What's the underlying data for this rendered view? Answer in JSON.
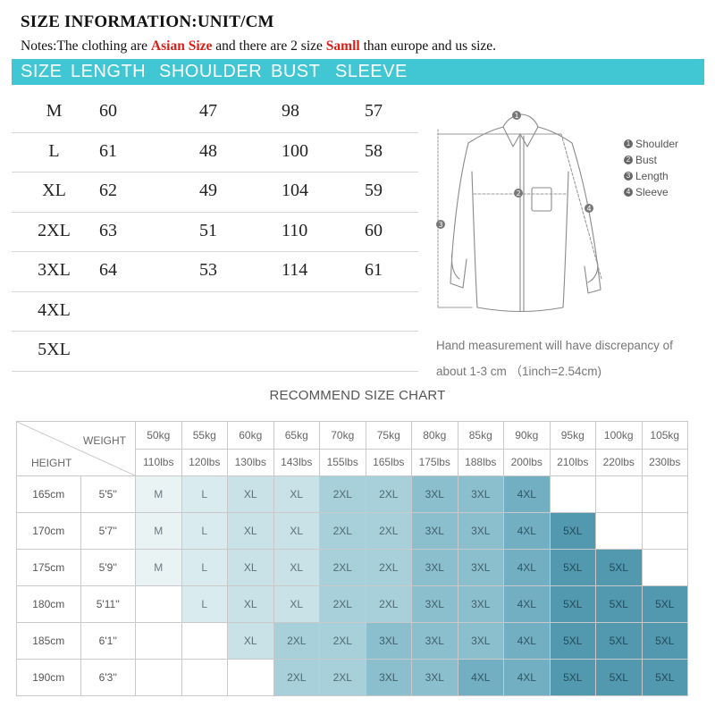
{
  "title": "SIZE INFORMATION:UNIT/CM",
  "notes": {
    "prefix": "Notes:The clothing are ",
    "highlight1": "Asian Size",
    "middle": " and there are 2 size ",
    "highlight2": "Samll",
    "suffix": " than europe and us size."
  },
  "header": {
    "size": "SIZE",
    "length": "LENGTH",
    "shoulder": "SHOULDER",
    "bust": "BUST",
    "sleeve": "SLEEVE"
  },
  "size_rows": [
    {
      "size": "M",
      "length": "60",
      "shoulder": "47",
      "bust": "98",
      "sleeve": "57"
    },
    {
      "size": "L",
      "length": "61",
      "shoulder": "48",
      "bust": "100",
      "sleeve": "58"
    },
    {
      "size": "XL",
      "length": "62",
      "shoulder": "49",
      "bust": "104",
      "sleeve": "59"
    },
    {
      "size": "2XL",
      "length": "63",
      "shoulder": "51",
      "bust": "110",
      "sleeve": "60"
    },
    {
      "size": "3XL",
      "length": "64",
      "shoulder": "53",
      "bust": "114",
      "sleeve": "61"
    },
    {
      "size": "4XL",
      "length": "",
      "shoulder": "",
      "bust": "",
      "sleeve": ""
    },
    {
      "size": "5XL",
      "length": "",
      "shoulder": "",
      "bust": "",
      "sleeve": ""
    }
  ],
  "diagram": {
    "marks": [
      "1",
      "2",
      "3",
      "4"
    ],
    "legend": [
      {
        "num": "1",
        "label": "Shoulder"
      },
      {
        "num": "2",
        "label": "Bust"
      },
      {
        "num": "3",
        "label": "Length"
      },
      {
        "num": "4",
        "label": "Sleeve"
      }
    ]
  },
  "hand_note": {
    "line1": "Hand measurement will have discrepancy of",
    "line2": "about 1-3 cm （1inch=2.54cm)"
  },
  "recommend": {
    "title": "RECOMMEND SIZE CHART",
    "weight_label": "WEIGHT",
    "height_label": "HEIGHT",
    "weights_kg": [
      "50kg",
      "55kg",
      "60kg",
      "65kg",
      "70kg",
      "75kg",
      "80kg",
      "85kg",
      "90kg",
      "95kg",
      "100kg",
      "105kg"
    ],
    "weights_lbs": [
      "110lbs",
      "120lbs",
      "130lbs",
      "143lbs",
      "155lbs",
      "165lbs",
      "175lbs",
      "188lbs",
      "200lbs",
      "210lbs",
      "220lbs",
      "230lbs"
    ],
    "rows": [
      {
        "cm": "165cm",
        "ft": "5'5''",
        "sizes": [
          "M",
          "L",
          "XL",
          "XL",
          "2XL",
          "2XL",
          "3XL",
          "3XL",
          "4XL",
          "",
          "",
          ""
        ]
      },
      {
        "cm": "170cm",
        "ft": "5'7''",
        "sizes": [
          "M",
          "L",
          "XL",
          "XL",
          "2XL",
          "2XL",
          "3XL",
          "3XL",
          "4XL",
          "5XL",
          "",
          ""
        ]
      },
      {
        "cm": "175cm",
        "ft": "5'9''",
        "sizes": [
          "M",
          "L",
          "XL",
          "XL",
          "2XL",
          "2XL",
          "3XL",
          "3XL",
          "4XL",
          "5XL",
          "5XL",
          ""
        ]
      },
      {
        "cm": "180cm",
        "ft": "5'11''",
        "sizes": [
          "",
          "L",
          "XL",
          "XL",
          "2XL",
          "2XL",
          "3XL",
          "3XL",
          "4XL",
          "5XL",
          "5XL",
          "5XL"
        ]
      },
      {
        "cm": "185cm",
        "ft": "6'1''",
        "sizes": [
          "",
          "",
          "XL",
          "2XL",
          "2XL",
          "3XL",
          "3XL",
          "3XL",
          "4XL",
          "5XL",
          "5XL",
          "5XL"
        ]
      },
      {
        "cm": "190cm",
        "ft": "6'3''",
        "sizes": [
          "",
          "",
          "",
          "2XL",
          "2XL",
          "3XL",
          "3XL",
          "4XL",
          "4XL",
          "5XL",
          "5XL",
          "5XL"
        ]
      }
    ],
    "size_colors": {
      "M": "#e9f3f4",
      "L": "#d9ebee",
      "XL": "#c9e2e7",
      "2XL": "#a8d0da",
      "3XL": "#8cbfcd",
      "4XL": "#73afc2",
      "5XL": "#5299b0"
    },
    "size_text_colors": {
      "M": "#6a7b80",
      "L": "#6a7b80",
      "XL": "#5d7075",
      "2XL": "#4f6a72",
      "3XL": "#405f69",
      "4XL": "#2f5665",
      "5XL": "#234a5a"
    }
  }
}
